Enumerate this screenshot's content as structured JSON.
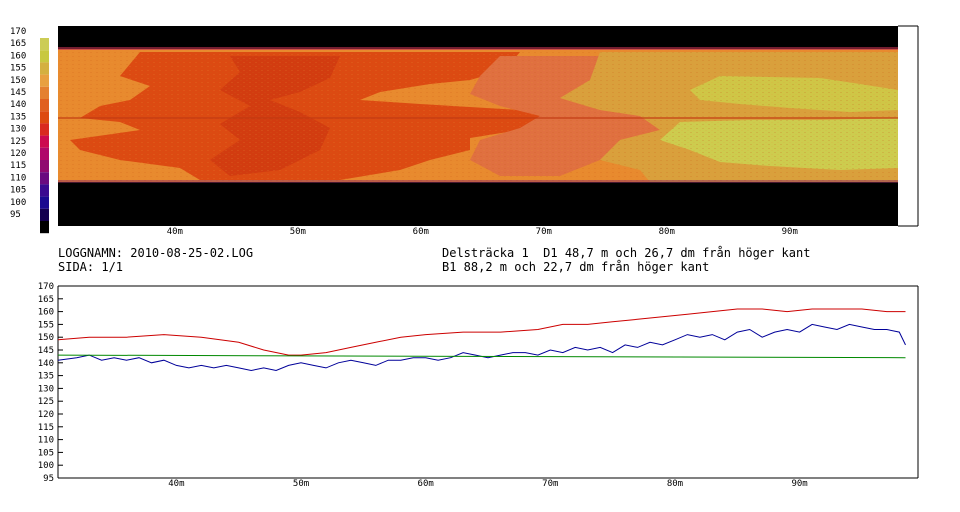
{
  "header": {
    "log_name_label": "LOGGNAMN: 2010-08-25-02.LOG",
    "page_label": "SIDA: 1/1",
    "segment_line1": "Delsträcka 1  D1 48,7 m och 26,7 dm från höger kant",
    "segment_line2": "B1 88,2 m och 22,7 dm från höger kant"
  },
  "colors": {
    "red_series": "#cc0000",
    "blue_series": "#000099",
    "green_series": "#008800",
    "scale": [
      "#000000",
      "#140050",
      "#1a0a90",
      "#3a0a90",
      "#6a0a80",
      "#900a70",
      "#b0086a",
      "#cc0a50",
      "#d92a20",
      "#dd4a10",
      "#e06020",
      "#e48030",
      "#e8a040",
      "#d4b040",
      "#c8c840",
      "#cccc55"
    ]
  },
  "chart_data": [
    {
      "type": "heatmap",
      "xlabel": "",
      "ylabel": "",
      "x_ticks": [
        "40m",
        "50m",
        "60m",
        "70m",
        "80m",
        "90m"
      ],
      "x_tick_values": [
        40,
        50,
        60,
        70,
        80,
        90
      ],
      "x_range": [
        30.5,
        98.8
      ],
      "color_scale_labels": [
        "170",
        "165",
        "160",
        "155",
        "150",
        "145",
        "140",
        "135",
        "130",
        "125",
        "120",
        "115",
        "110",
        "105",
        "100",
        "95"
      ],
      "color_scale_range": [
        95,
        170
      ]
    },
    {
      "type": "line",
      "xlabel": "",
      "ylabel": "",
      "ylim": [
        95,
        170
      ],
      "y_ticks": [
        170,
        165,
        160,
        155,
        150,
        145,
        140,
        135,
        130,
        125,
        120,
        115,
        110,
        105,
        100,
        95
      ],
      "x_ticks": [
        "40m",
        "50m",
        "60m",
        "70m",
        "80m",
        "90m"
      ],
      "x_tick_values": [
        40,
        50,
        60,
        70,
        80,
        90
      ],
      "x_range": [
        30.5,
        99.5
      ],
      "series": [
        {
          "color": "#cc0000",
          "x": [
            30.5,
            33,
            36,
            39,
            42,
            45,
            47,
            49,
            50,
            52,
            54,
            56,
            58,
            60,
            63,
            66,
            69,
            71,
            73,
            75,
            77,
            79,
            81,
            83,
            85,
            87,
            89,
            91,
            93,
            95,
            97,
            98.5
          ],
          "y": [
            149,
            150,
            150,
            151,
            150,
            148,
            145,
            143,
            143,
            144,
            146,
            148,
            150,
            151,
            152,
            152,
            153,
            155,
            155,
            156,
            157,
            158,
            159,
            160,
            161,
            161,
            160,
            161,
            161,
            161,
            160,
            160
          ]
        },
        {
          "color": "#000099",
          "x": [
            30.5,
            32,
            33,
            34,
            35,
            36,
            37,
            38,
            39,
            40,
            41,
            42,
            43,
            44,
            45,
            46,
            47,
            48,
            49,
            50,
            51,
            52,
            53,
            54,
            55,
            56,
            57,
            58,
            59,
            60,
            61,
            62,
            63,
            64,
            65,
            66,
            67,
            68,
            69,
            70,
            71,
            72,
            73,
            74,
            75,
            76,
            77,
            78,
            79,
            80,
            81,
            82,
            83,
            84,
            85,
            86,
            87,
            88,
            89,
            90,
            91,
            92,
            93,
            94,
            95,
            96,
            97,
            98,
            98.5
          ],
          "y": [
            141,
            142,
            143,
            141,
            142,
            141,
            142,
            140,
            141,
            139,
            138,
            139,
            138,
            139,
            138,
            137,
            138,
            137,
            139,
            140,
            139,
            138,
            140,
            141,
            140,
            139,
            141,
            141,
            142,
            142,
            141,
            142,
            144,
            143,
            142,
            143,
            144,
            144,
            143,
            145,
            144,
            146,
            145,
            146,
            144,
            147,
            146,
            148,
            147,
            149,
            151,
            150,
            151,
            149,
            152,
            153,
            150,
            152,
            153,
            152,
            155,
            154,
            153,
            155,
            154,
            153,
            153,
            152,
            147
          ]
        },
        {
          "color": "#008800",
          "x": [
            30.5,
            98.5
          ],
          "y": [
            143,
            142
          ]
        }
      ]
    }
  ]
}
